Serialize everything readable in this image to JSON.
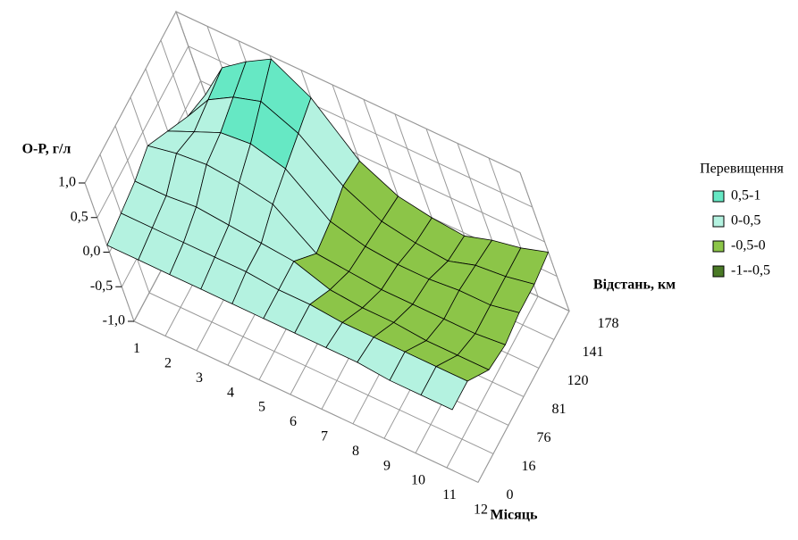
{
  "chart_data": {
    "type": "surface",
    "y_label": "O-P, г/л",
    "x_label": "Місяць",
    "depth_label": "Відстань, км",
    "categories": [
      "1",
      "2",
      "3",
      "4",
      "5",
      "6",
      "7",
      "8",
      "9",
      "10",
      "11",
      "12"
    ],
    "depth_categories": [
      "0",
      "16",
      "76",
      "81",
      "120",
      "141",
      "178"
    ],
    "values": [
      [
        0.1,
        0.1,
        0.1,
        0.1,
        0.1,
        0.1,
        0.1,
        0.1,
        0.1,
        0.05,
        0.05,
        0.05
      ],
      [
        0.15,
        0.15,
        0.15,
        0.15,
        0.15,
        0.1,
        0.1,
        0.05,
        0.05,
        0.05,
        0.05,
        0.05
      ],
      [
        0.2,
        0.2,
        0.25,
        0.2,
        0.15,
        0.1,
        -0.1,
        -0.15,
        -0.15,
        -0.2,
        -0.2,
        -0.2
      ],
      [
        0.3,
        0.4,
        0.45,
        0.4,
        0.3,
        -0.2,
        -0.25,
        -0.3,
        -0.3,
        -0.3,
        -0.3,
        -0.25
      ],
      [
        0.1,
        0.3,
        0.5,
        0.55,
        0.4,
        -0.15,
        -0.3,
        -0.35,
        -0.35,
        -0.3,
        -0.3,
        -0.2
      ],
      [
        -0.1,
        0.35,
        0.6,
        0.75,
        0.5,
        -0.05,
        -0.35,
        -0.45,
        -0.5,
        -0.35,
        -0.3,
        -0.2
      ],
      [
        -0.2,
        0.4,
        0.7,
        0.95,
        0.6,
        -0.1,
        -0.4,
        -0.5,
        -0.55,
        -0.4,
        -0.3,
        -0.15
      ]
    ],
    "ylim": [
      -1,
      1
    ],
    "yticks": [
      {
        "value": -1,
        "label": "-1,0"
      },
      {
        "value": -0.5,
        "label": "-0,5"
      },
      {
        "value": 0,
        "label": "0,0"
      },
      {
        "value": 0.5,
        "label": "0,5"
      },
      {
        "value": 1,
        "label": "1,0"
      }
    ],
    "grid": true,
    "legend": {
      "title": "Перевищення",
      "position": "right",
      "bands": [
        {
          "label": "0,5-1",
          "from": 0.5,
          "to": 1,
          "color": "#66e8c4"
        },
        {
          "label": "0-0,5",
          "from": 0,
          "to": 0.5,
          "color": "#b4f2e0"
        },
        {
          "label": "-0,5-0",
          "from": -0.5,
          "to": 0,
          "color": "#8cc548"
        },
        {
          "label": "-1--0,5",
          "from": -1,
          "to": -0.5,
          "color": "#4a7a26"
        }
      ]
    }
  }
}
